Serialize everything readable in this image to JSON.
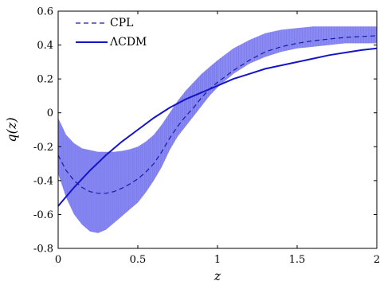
{
  "chart_data": {
    "type": "line",
    "xlabel": "z",
    "ylabel": "q(z)",
    "xlim": [
      0,
      2
    ],
    "ylim": [
      -0.8,
      0.6
    ],
    "x_ticks": [
      0,
      0.5,
      1,
      1.5,
      2
    ],
    "x_tick_labels": [
      "0",
      "0.5",
      "1",
      "1.5",
      "2"
    ],
    "y_ticks": [
      -0.8,
      -0.6,
      -0.4,
      -0.2,
      0,
      0.2,
      0.4,
      0.6
    ],
    "y_tick_labels": [
      "-0.8",
      "-0.6",
      "-0.4",
      "-0.2",
      "0",
      "0.2",
      "0.4",
      "0.6"
    ],
    "grid": false,
    "legend_position": "top-left",
    "band": {
      "color": "#7a7af0",
      "x": [
        0,
        0.05,
        0.1,
        0.15,
        0.2,
        0.25,
        0.3,
        0.35,
        0.4,
        0.45,
        0.5,
        0.55,
        0.6,
        0.65,
        0.7,
        0.75,
        0.8,
        0.85,
        0.9,
        0.95,
        1,
        1.1,
        1.2,
        1.3,
        1.4,
        1.5,
        1.6,
        1.7,
        1.8,
        1.9,
        2
      ],
      "upper": [
        -0.03,
        -0.13,
        -0.18,
        -0.21,
        -0.22,
        -0.23,
        -0.23,
        -0.23,
        -0.225,
        -0.215,
        -0.2,
        -0.17,
        -0.13,
        -0.07,
        0.0,
        0.07,
        0.13,
        0.18,
        0.23,
        0.27,
        0.31,
        0.38,
        0.43,
        0.47,
        0.49,
        0.5,
        0.51,
        0.51,
        0.51,
        0.51,
        0.51
      ],
      "lower": [
        -0.36,
        -0.5,
        -0.6,
        -0.66,
        -0.7,
        -0.71,
        -0.69,
        -0.65,
        -0.61,
        -0.57,
        -0.53,
        -0.47,
        -0.4,
        -0.32,
        -0.22,
        -0.14,
        -0.08,
        -0.02,
        0.04,
        0.1,
        0.15,
        0.23,
        0.29,
        0.33,
        0.36,
        0.38,
        0.39,
        0.4,
        0.41,
        0.41,
        0.41
      ]
    },
    "series": [
      {
        "name": "CPL",
        "style": "dashed",
        "color": "#1a1aa0",
        "x": [
          0,
          0.05,
          0.1,
          0.15,
          0.2,
          0.25,
          0.3,
          0.35,
          0.4,
          0.45,
          0.5,
          0.55,
          0.6,
          0.65,
          0.7,
          0.75,
          0.8,
          0.85,
          0.9,
          0.95,
          1,
          1.1,
          1.2,
          1.3,
          1.4,
          1.5,
          1.6,
          1.7,
          1.8,
          1.9,
          2
        ],
        "y": [
          -0.25,
          -0.34,
          -0.4,
          -0.44,
          -0.465,
          -0.475,
          -0.475,
          -0.465,
          -0.445,
          -0.42,
          -0.39,
          -0.35,
          -0.3,
          -0.23,
          -0.15,
          -0.08,
          -0.02,
          0.03,
          0.09,
          0.14,
          0.18,
          0.25,
          0.31,
          0.36,
          0.39,
          0.41,
          0.425,
          0.435,
          0.445,
          0.45,
          0.455
        ]
      },
      {
        "name": "ΛCDM",
        "style": "solid",
        "color": "#1515c8",
        "x": [
          0,
          0.1,
          0.2,
          0.3,
          0.4,
          0.5,
          0.6,
          0.7,
          0.8,
          0.9,
          1,
          1.1,
          1.2,
          1.3,
          1.4,
          1.5,
          1.6,
          1.7,
          1.8,
          1.9,
          2
        ],
        "y": [
          -0.55,
          -0.44,
          -0.34,
          -0.25,
          -0.17,
          -0.1,
          -0.03,
          0.03,
          0.08,
          0.12,
          0.16,
          0.2,
          0.23,
          0.26,
          0.28,
          0.3,
          0.32,
          0.34,
          0.355,
          0.37,
          0.38
        ]
      }
    ]
  }
}
